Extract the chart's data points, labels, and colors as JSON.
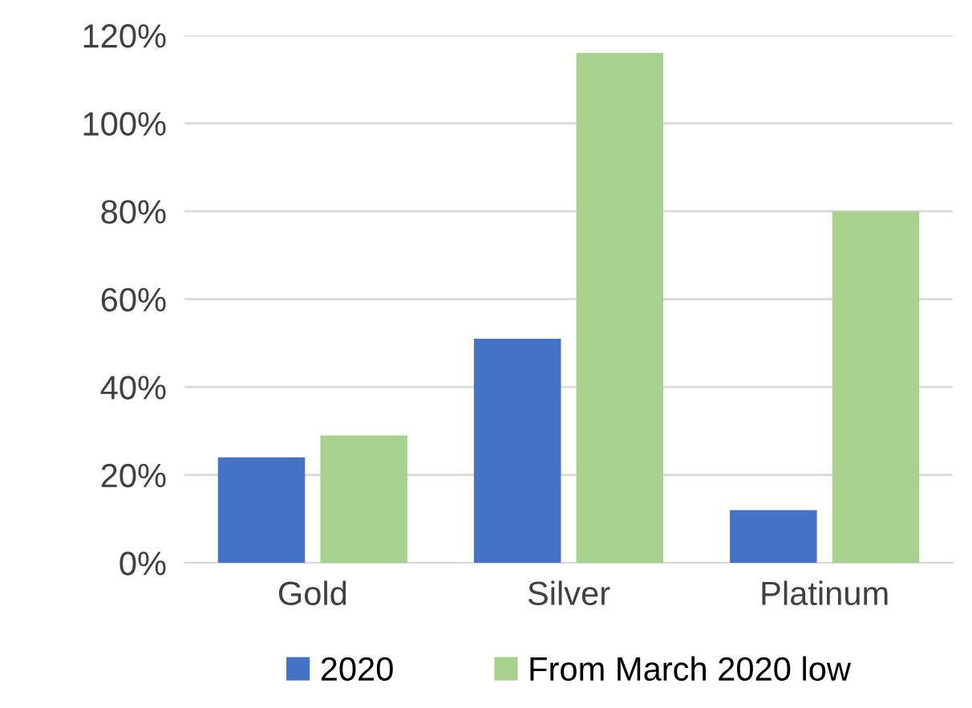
{
  "chart_data": {
    "type": "bar",
    "categories": [
      "Gold",
      "Silver",
      "Platinum"
    ],
    "series": [
      {
        "name": "2020",
        "color": "#4472c4",
        "values": [
          24,
          51,
          12
        ]
      },
      {
        "name": "From March 2020 low",
        "color": "#a9d18e",
        "values": [
          29,
          116,
          80
        ]
      }
    ],
    "ylim": [
      0,
      120
    ],
    "yticks": [
      {
        "value": 0,
        "label": "0%"
      },
      {
        "value": 20,
        "label": "20%"
      },
      {
        "value": 40,
        "label": "40%"
      },
      {
        "value": 60,
        "label": "60%"
      },
      {
        "value": 80,
        "label": "80%"
      },
      {
        "value": 100,
        "label": "100%"
      },
      {
        "value": 120,
        "label": "120%"
      }
    ],
    "grid": "y",
    "legend": "bottom"
  }
}
